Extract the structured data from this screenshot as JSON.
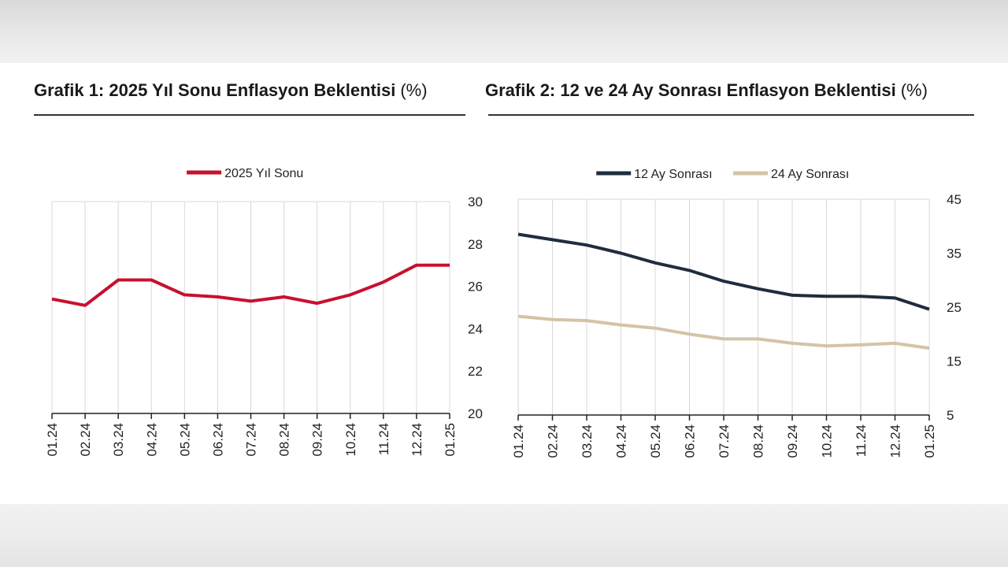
{
  "header": {
    "title1": "Grafik 1: 2025 Yıl Sonu Enflasyon Beklentisi",
    "unit1": "(%)",
    "title2": "Grafik 2: 12 ve 24 Ay Sonrası Enflasyon Beklentisi",
    "unit2": "(%)"
  },
  "colors": {
    "red": "#c8102e",
    "navy": "#1f2d3d",
    "beige": "#d4c3a6",
    "grid": "#d9d9d9"
  },
  "chart_data": [
    {
      "type": "line",
      "title": "Grafik 1: 2025 Yıl Sonu Enflasyon Beklentisi (%)",
      "categories": [
        "01.24",
        "02.24",
        "03.24",
        "04.24",
        "05.24",
        "06.24",
        "07.24",
        "08.24",
        "09.24",
        "10.24",
        "11.24",
        "12.24",
        "01.25"
      ],
      "series": [
        {
          "name": "2025 Yıl Sonu",
          "color": "#c8102e",
          "values": [
            25.4,
            25.1,
            26.3,
            26.3,
            25.6,
            25.5,
            25.3,
            25.5,
            25.2,
            25.6,
            26.2,
            27.0,
            27.0
          ]
        }
      ],
      "y_axis_side": "right",
      "ylim": [
        20,
        30
      ],
      "yticks": [
        20,
        22,
        24,
        26,
        28,
        30
      ],
      "grid": "vertical",
      "legend": "top-center"
    },
    {
      "type": "line",
      "title": "Grafik 2: 12 ve 24 Ay Sonrası Enflasyon Beklentisi (%)",
      "categories": [
        "01.24",
        "02.24",
        "03.24",
        "04.24",
        "05.24",
        "06.24",
        "07.24",
        "08.24",
        "09.24",
        "10.24",
        "11.24",
        "12.24",
        "01.25"
      ],
      "series": [
        {
          "name": "12 Ay Sonrası",
          "color": "#1f2d3d",
          "values": [
            38.5,
            37.5,
            36.5,
            35.0,
            33.2,
            31.8,
            29.8,
            28.4,
            27.2,
            27.0,
            27.0,
            26.7,
            24.6
          ]
        },
        {
          "name": "24 Ay Sonrası",
          "color": "#d4c3a6",
          "values": [
            23.3,
            22.7,
            22.5,
            21.7,
            21.1,
            20.0,
            19.1,
            19.1,
            18.3,
            17.8,
            18.0,
            18.3,
            17.4
          ]
        }
      ],
      "y_axis_side": "right",
      "ylim": [
        5,
        45
      ],
      "yticks": [
        5,
        15,
        25,
        35,
        45
      ],
      "grid": "vertical",
      "legend": "top-center"
    }
  ]
}
